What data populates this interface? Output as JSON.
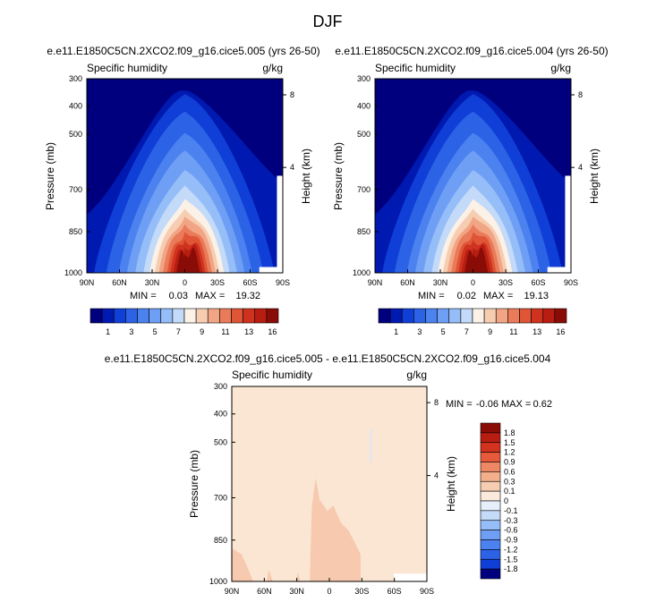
{
  "figure_title": "DJF",
  "chart_data": [
    {
      "type": "contour",
      "id": "p1",
      "title": "e.e11.E1850C5CN.2XCO2.f09_g16.cice5.005 (yrs 26-50)",
      "left_label": "Specific humidity",
      "right_label": "g/kg",
      "ylabel": "Pressure (mb)",
      "ylabel_right": "Height (km)",
      "x_ticks": [
        "90N",
        "60N",
        "30N",
        "0",
        "30S",
        "60S",
        "90S"
      ],
      "y_ticks": [
        "300",
        "400",
        "500",
        "700",
        "850",
        "1000"
      ],
      "y_right_ticks": [
        "8",
        "4"
      ],
      "ylim": [
        1000,
        300
      ],
      "stats": {
        "min_label": "MIN =",
        "min": "0.03",
        "max_label": "MAX =",
        "max": "19.32"
      },
      "peak_value": 19.32
    },
    {
      "type": "contour",
      "id": "p2",
      "title": "e.e11.E1850C5CN.2XCO2.f09_g16.cice5.004 (yrs 26-50)",
      "left_label": "Specific humidity",
      "right_label": "g/kg",
      "ylabel": "Pressure (mb)",
      "ylabel_right": "Height (km)",
      "x_ticks": [
        "90N",
        "60N",
        "30N",
        "0",
        "30S",
        "60S",
        "90S"
      ],
      "y_ticks": [
        "300",
        "400",
        "500",
        "700",
        "850",
        "1000"
      ],
      "y_right_ticks": [
        "8",
        "4"
      ],
      "ylim": [
        1000,
        300
      ],
      "stats": {
        "min_label": "MIN =",
        "min": "0.02",
        "max_label": "MAX =",
        "max": "19.13"
      },
      "peak_value": 19.13
    },
    {
      "type": "contour",
      "id": "diff",
      "title": "e.e11.E1850C5CN.2XCO2.f09_g16.cice5.005 - e.e11.E1850C5CN.2XCO2.f09_g16.cice5.004",
      "left_label": "Specific humidity",
      "right_label": "g/kg",
      "ylabel": "Pressure (mb)",
      "ylabel_right": "Height (km)",
      "x_ticks": [
        "90N",
        "60N",
        "30N",
        "0",
        "30S",
        "60S",
        "90S"
      ],
      "y_ticks": [
        "300",
        "400",
        "500",
        "700",
        "850",
        "1000"
      ],
      "y_right_ticks": [
        "8",
        "4"
      ],
      "ylim": [
        1000,
        300
      ],
      "stats": {
        "min_label": "MIN =",
        "min": "-0.06",
        "max_label": "MAX =",
        "max": "0.62"
      }
    }
  ],
  "colorbar_top": {
    "labels": [
      "1",
      "3",
      "5",
      "7",
      "9",
      "11",
      "13",
      "16"
    ],
    "colors": [
      "#00007f",
      "#0019b0",
      "#0f3fd6",
      "#2c62e6",
      "#4b82ef",
      "#6f9ff4",
      "#95bdf8",
      "#c3daf9",
      "#fbf1e6",
      "#f7cdb2",
      "#f1a585",
      "#ea7b5a",
      "#e05536",
      "#cf3320",
      "#b81d12",
      "#8a0c06"
    ]
  },
  "colorbar_bottom": {
    "labels": [
      "1.8",
      "1.5",
      "1.2",
      "0.9",
      "0.6",
      "0.3",
      "0.1",
      "0",
      "-0.1",
      "-0.3",
      "-0.6",
      "-0.9",
      "-1.2",
      "-1.5",
      "-1.8"
    ],
    "colors": [
      "#8a0c06",
      "#b81d12",
      "#d3321f",
      "#e65a3b",
      "#ee8763",
      "#f3ae8c",
      "#f7cdb2",
      "#fbeadb",
      "#e6f0fb",
      "#c3daf9",
      "#95bdf8",
      "#6f9ff4",
      "#4b82ef",
      "#2c62e6",
      "#0f3fd6",
      "#00007f"
    ]
  },
  "colors": {
    "top_ramp": [
      "#00007f",
      "#0019b0",
      "#0f3fd6",
      "#2c62e6",
      "#4b82ef",
      "#6f9ff4",
      "#95bdf8",
      "#c3daf9",
      "#fbf1e6",
      "#f7cdb2",
      "#f1a585",
      "#ea7b5a",
      "#e05536",
      "#cf3320",
      "#b81d12",
      "#8a0c06"
    ],
    "diff_background": "#fbe6d4",
    "diff_blob": "#f7c9ae",
    "diff_streak": "#dbe6f5"
  }
}
